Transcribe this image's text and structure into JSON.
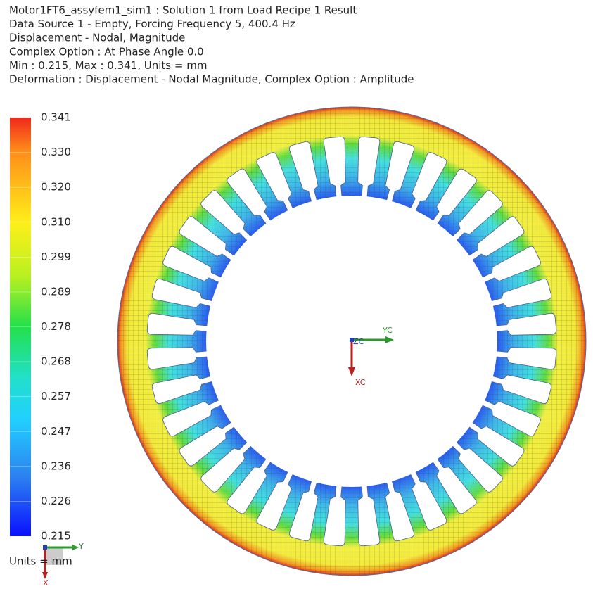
{
  "header": {
    "lines": [
      "Motor1FT6_assyfem1_sim1 : Solution 1 from Load Recipe 1 Result",
      "Data Source 1 - Empty, Forcing Frequency 5, 400.4 Hz",
      "Displacement - Nodal, Magnitude",
      "Complex Option : At Phase Angle   0.0",
      "Min : 0.215, Max : 0.341, Units = mm",
      "Deformation : Displacement - Nodal Magnitude, Complex Option : Amplitude"
    ]
  },
  "legend": {
    "labels": [
      "0.341",
      "0.330",
      "0.320",
      "0.310",
      "0.299",
      "0.289",
      "0.278",
      "0.268",
      "0.257",
      "0.247",
      "0.236",
      "0.226",
      "0.215"
    ],
    "units": "Units = mm"
  },
  "center_triad": {
    "x": "XC",
    "y": "YC",
    "z": "ZC"
  },
  "corner_triad": {
    "x": "X",
    "y": "Y"
  }
}
